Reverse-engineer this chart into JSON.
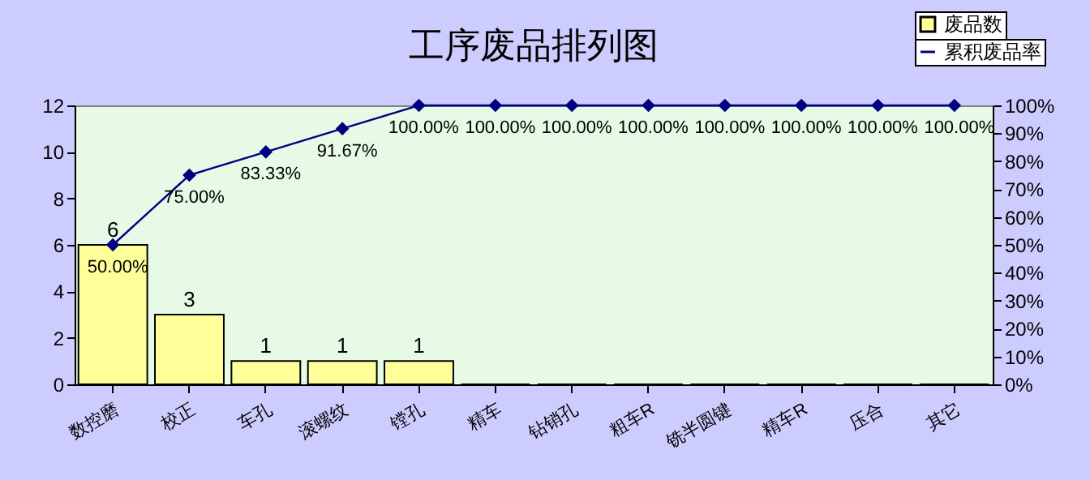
{
  "chart_data": {
    "type": "bar",
    "title": "工序废品排列图",
    "categories": [
      "数控磨",
      "校正",
      "车孔",
      "滚螺纹",
      "镗孔",
      "精车",
      "钻销孔",
      "粗车R",
      "铣半圆键",
      "精车R",
      "压合",
      "其它"
    ],
    "series": [
      {
        "name": "废品数",
        "color": "#ffff99",
        "values": [
          6,
          3,
          1,
          1,
          1,
          0,
          0,
          0,
          0,
          0,
          0,
          0
        ],
        "value_labels": [
          "6",
          "3",
          "1",
          "1",
          "1",
          null,
          null,
          null,
          null,
          null,
          null,
          null
        ]
      },
      {
        "name": "累积废品率",
        "type": "line",
        "axis": "y2",
        "color": "#000080",
        "values": [
          50,
          75,
          83.33,
          91.67,
          100,
          100,
          100,
          100,
          100,
          100,
          100,
          100
        ],
        "value_labels": [
          "50.00%",
          "75.00%",
          "83.33%",
          "91.67%",
          "100.00%",
          "100.00%",
          "100.00%",
          "100.00%",
          "100.00%",
          "100.00%",
          "100.00%",
          "100.00%"
        ]
      }
    ],
    "ylim": [
      0,
      12
    ],
    "yticks": [
      0,
      2,
      4,
      6,
      8,
      10,
      12
    ],
    "y2lim": [
      0,
      100
    ],
    "y2ticks": [
      {
        "value": 0,
        "label": "0%"
      },
      {
        "value": 10,
        "label": "10%"
      },
      {
        "value": 20,
        "label": "20%"
      },
      {
        "value": 30,
        "label": "30%"
      },
      {
        "value": 40,
        "label": "40%"
      },
      {
        "value": 50,
        "label": "50%"
      },
      {
        "value": 60,
        "label": "60%"
      },
      {
        "value": 70,
        "label": "70%"
      },
      {
        "value": 80,
        "label": "80%"
      },
      {
        "value": 90,
        "label": "90%"
      },
      {
        "value": 100,
        "label": "100%"
      }
    ],
    "marker": "diamond",
    "legend": "top right",
    "grid": false
  }
}
